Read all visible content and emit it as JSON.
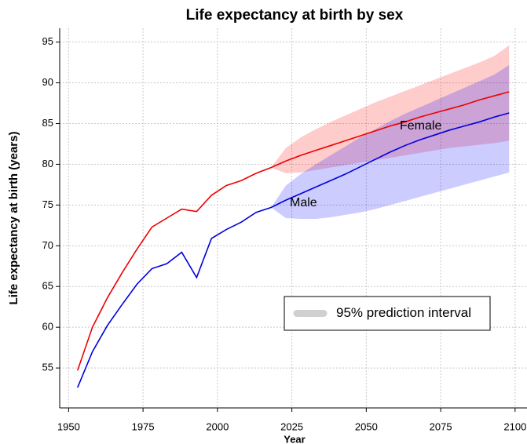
{
  "chart_data": {
    "type": "line",
    "title": "Life expectancy at birth by sex",
    "x_label": "Year",
    "y_label": "Life expectancy at birth (years)",
    "x": [
      1953,
      1958,
      1963,
      1968,
      1973,
      1978,
      1983,
      1988,
      1993,
      1998,
      2003,
      2008,
      2013,
      2018,
      2023,
      2028,
      2033,
      2038,
      2043,
      2048,
      2053,
      2058,
      2063,
      2068,
      2073,
      2078,
      2083,
      2088,
      2093,
      2098
    ],
    "series": [
      {
        "name": "Female",
        "color": "#ee0000",
        "band_color": "rgba(255,0,0,0.2)",
        "values": [
          54.7,
          60,
          63.6,
          66.7,
          69.6,
          72.3,
          73.4,
          74.5,
          74.2,
          76.2,
          77.4,
          78,
          78.9,
          79.6,
          80.4,
          81.1,
          81.7,
          82.3,
          82.9,
          83.5,
          84.1,
          84.7,
          85.2,
          85.8,
          86.3,
          86.8,
          87.3,
          87.9,
          88.4,
          88.9
        ],
        "lower": [
          null,
          null,
          null,
          null,
          null,
          null,
          null,
          null,
          null,
          null,
          null,
          null,
          null,
          79.6,
          78.9,
          79,
          79.3,
          79.6,
          79.9,
          80.2,
          80.5,
          80.8,
          81.1,
          81.4,
          81.7,
          82,
          82.2,
          82.4,
          82.6,
          82.9
        ],
        "upper": [
          null,
          null,
          null,
          null,
          null,
          null,
          null,
          null,
          null,
          null,
          null,
          null,
          null,
          79.6,
          82,
          83.3,
          84.3,
          85.2,
          86,
          86.8,
          87.6,
          88.3,
          89,
          89.7,
          90.4,
          91.1,
          91.8,
          92.5,
          93.3,
          94.6
        ]
      },
      {
        "name": "Male",
        "color": "#0000dd",
        "band_color": "rgba(0,0,255,0.2)",
        "values": [
          52.6,
          57,
          60.2,
          62.8,
          65.3,
          67.2,
          67.8,
          69.2,
          66.1,
          70.9,
          72,
          72.9,
          74.1,
          74.7,
          75.6,
          76.4,
          77.2,
          78,
          78.8,
          79.7,
          80.6,
          81.5,
          82.3,
          83,
          83.6,
          84.2,
          84.7,
          85.2,
          85.8,
          86.3
        ],
        "lower": [
          null,
          null,
          null,
          null,
          null,
          null,
          null,
          null,
          null,
          null,
          null,
          null,
          null,
          74.7,
          73.4,
          73.3,
          73.3,
          73.5,
          73.8,
          74.1,
          74.5,
          75,
          75.5,
          76,
          76.5,
          77,
          77.5,
          78,
          78.5,
          79
        ],
        "upper": [
          null,
          null,
          null,
          null,
          null,
          null,
          null,
          null,
          null,
          null,
          null,
          null,
          null,
          74.7,
          77.4,
          78.8,
          80,
          81.1,
          82.2,
          83.3,
          84.3,
          85.3,
          86.2,
          87,
          87.8,
          88.6,
          89.4,
          90.2,
          91,
          92.2
        ]
      }
    ],
    "legend_label": "95% prediction interval",
    "xlim": [
      1947,
      2104
    ],
    "ylim": [
      50.1,
      96.7
    ],
    "xticks": [
      1950,
      1975,
      2000,
      2025,
      2050,
      2075,
      2100
    ],
    "yticks": [
      55,
      60,
      65,
      70,
      75,
      80,
      85,
      90,
      95
    ],
    "grid": true
  }
}
